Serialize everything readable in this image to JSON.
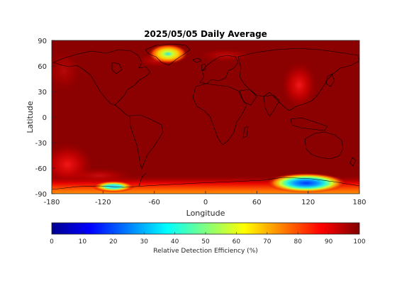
{
  "title": "2025/05/05 Daily Average",
  "x_axis": {
    "label": "Longitude",
    "ticks": [
      "-180",
      "-120",
      "-60",
      "0",
      "60",
      "120",
      "180"
    ],
    "range": [
      -180,
      180
    ]
  },
  "y_axis": {
    "label": "Latitude",
    "ticks": [
      "90",
      "60",
      "30",
      "0",
      "-30",
      "-60",
      "-90"
    ],
    "range": [
      -90,
      90
    ]
  },
  "colorbar": {
    "label": "Relative Detection Efficiency (%)",
    "ticks": [
      "0",
      "10",
      "20",
      "30",
      "40",
      "50",
      "60",
      "70",
      "80",
      "90",
      "100"
    ],
    "range": [
      0,
      100
    ],
    "colormap": "jet"
  },
  "colors": {
    "background_max": "#8b0000",
    "field_base": "#800000"
  },
  "chart_data": {
    "type": "heatmap",
    "title": "2025/05/05 Daily Average",
    "xlabel": "Longitude",
    "ylabel": "Latitude",
    "xlim": [
      -180,
      180
    ],
    "ylim": [
      -90,
      90
    ],
    "clabel": "Relative Detection Efficiency (%)",
    "clim": [
      0,
      100
    ],
    "background_value": 97,
    "features": [
      {
        "lon": -40,
        "lat": 72,
        "value": 45
      },
      {
        "lon": 120,
        "lat": -78,
        "value": 15
      },
      {
        "lon": -120,
        "lat": -82,
        "value": 40
      },
      {
        "lon": 110,
        "lat": 45,
        "value": 88
      },
      {
        "lon": -150,
        "lat": -55,
        "value": 88
      }
    ]
  }
}
